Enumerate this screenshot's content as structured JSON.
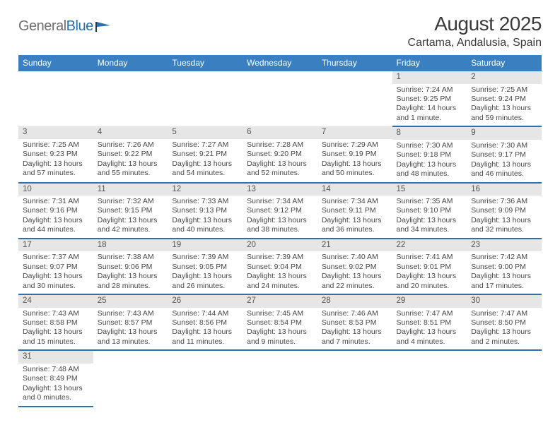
{
  "logo": {
    "text1": "General",
    "text2": "Blue"
  },
  "title": {
    "month": "August 2025",
    "location": "Cartama, Andalusia, Spain"
  },
  "colors": {
    "header_bg": "#3a7fbf",
    "header_text": "#ffffff",
    "daynum_bg": "#e6e6e6",
    "cell_border": "#2f6fad",
    "logo_grey": "#6f6f6f",
    "logo_blue": "#2a6fb0"
  },
  "weekdays": [
    "Sunday",
    "Monday",
    "Tuesday",
    "Wednesday",
    "Thursday",
    "Friday",
    "Saturday"
  ],
  "weeks": [
    [
      null,
      null,
      null,
      null,
      null,
      {
        "n": "1",
        "sr": "7:24 AM",
        "ss": "9:25 PM",
        "dl": "14 hours and 1 minute."
      },
      {
        "n": "2",
        "sr": "7:25 AM",
        "ss": "9:24 PM",
        "dl": "13 hours and 59 minutes."
      }
    ],
    [
      {
        "n": "3",
        "sr": "7:25 AM",
        "ss": "9:23 PM",
        "dl": "13 hours and 57 minutes."
      },
      {
        "n": "4",
        "sr": "7:26 AM",
        "ss": "9:22 PM",
        "dl": "13 hours and 55 minutes."
      },
      {
        "n": "5",
        "sr": "7:27 AM",
        "ss": "9:21 PM",
        "dl": "13 hours and 54 minutes."
      },
      {
        "n": "6",
        "sr": "7:28 AM",
        "ss": "9:20 PM",
        "dl": "13 hours and 52 minutes."
      },
      {
        "n": "7",
        "sr": "7:29 AM",
        "ss": "9:19 PM",
        "dl": "13 hours and 50 minutes."
      },
      {
        "n": "8",
        "sr": "7:30 AM",
        "ss": "9:18 PM",
        "dl": "13 hours and 48 minutes."
      },
      {
        "n": "9",
        "sr": "7:30 AM",
        "ss": "9:17 PM",
        "dl": "13 hours and 46 minutes."
      }
    ],
    [
      {
        "n": "10",
        "sr": "7:31 AM",
        "ss": "9:16 PM",
        "dl": "13 hours and 44 minutes."
      },
      {
        "n": "11",
        "sr": "7:32 AM",
        "ss": "9:15 PM",
        "dl": "13 hours and 42 minutes."
      },
      {
        "n": "12",
        "sr": "7:33 AM",
        "ss": "9:13 PM",
        "dl": "13 hours and 40 minutes."
      },
      {
        "n": "13",
        "sr": "7:34 AM",
        "ss": "9:12 PM",
        "dl": "13 hours and 38 minutes."
      },
      {
        "n": "14",
        "sr": "7:34 AM",
        "ss": "9:11 PM",
        "dl": "13 hours and 36 minutes."
      },
      {
        "n": "15",
        "sr": "7:35 AM",
        "ss": "9:10 PM",
        "dl": "13 hours and 34 minutes."
      },
      {
        "n": "16",
        "sr": "7:36 AM",
        "ss": "9:09 PM",
        "dl": "13 hours and 32 minutes."
      }
    ],
    [
      {
        "n": "17",
        "sr": "7:37 AM",
        "ss": "9:07 PM",
        "dl": "13 hours and 30 minutes."
      },
      {
        "n": "18",
        "sr": "7:38 AM",
        "ss": "9:06 PM",
        "dl": "13 hours and 28 minutes."
      },
      {
        "n": "19",
        "sr": "7:39 AM",
        "ss": "9:05 PM",
        "dl": "13 hours and 26 minutes."
      },
      {
        "n": "20",
        "sr": "7:39 AM",
        "ss": "9:04 PM",
        "dl": "13 hours and 24 minutes."
      },
      {
        "n": "21",
        "sr": "7:40 AM",
        "ss": "9:02 PM",
        "dl": "13 hours and 22 minutes."
      },
      {
        "n": "22",
        "sr": "7:41 AM",
        "ss": "9:01 PM",
        "dl": "13 hours and 20 minutes."
      },
      {
        "n": "23",
        "sr": "7:42 AM",
        "ss": "9:00 PM",
        "dl": "13 hours and 17 minutes."
      }
    ],
    [
      {
        "n": "24",
        "sr": "7:43 AM",
        "ss": "8:58 PM",
        "dl": "13 hours and 15 minutes."
      },
      {
        "n": "25",
        "sr": "7:43 AM",
        "ss": "8:57 PM",
        "dl": "13 hours and 13 minutes."
      },
      {
        "n": "26",
        "sr": "7:44 AM",
        "ss": "8:56 PM",
        "dl": "13 hours and 11 minutes."
      },
      {
        "n": "27",
        "sr": "7:45 AM",
        "ss": "8:54 PM",
        "dl": "13 hours and 9 minutes."
      },
      {
        "n": "28",
        "sr": "7:46 AM",
        "ss": "8:53 PM",
        "dl": "13 hours and 7 minutes."
      },
      {
        "n": "29",
        "sr": "7:47 AM",
        "ss": "8:51 PM",
        "dl": "13 hours and 4 minutes."
      },
      {
        "n": "30",
        "sr": "7:47 AM",
        "ss": "8:50 PM",
        "dl": "13 hours and 2 minutes."
      }
    ],
    [
      {
        "n": "31",
        "sr": "7:48 AM",
        "ss": "8:49 PM",
        "dl": "13 hours and 0 minutes."
      },
      null,
      null,
      null,
      null,
      null,
      null
    ]
  ],
  "labels": {
    "sunrise": "Sunrise: ",
    "sunset": "Sunset: ",
    "daylight": "Daylight: "
  }
}
